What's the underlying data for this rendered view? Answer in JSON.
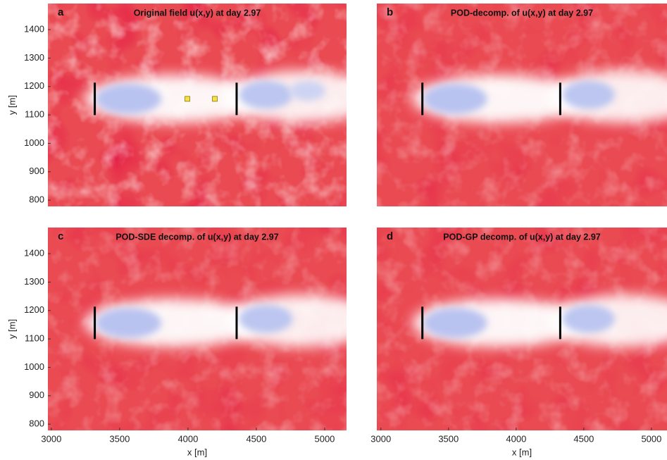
{
  "chart_data": [
    {
      "type": "heatmap",
      "panel": "a",
      "title": "Original field u(x,y) at day 2.97",
      "xlim": [
        2975,
        5160
      ],
      "ylim": [
        778,
        1492
      ],
      "yticks": [
        800,
        900,
        1000,
        1100,
        1200,
        1300,
        1400
      ],
      "ylabel": "y [m]"
    },
    {
      "type": "heatmap",
      "panel": "b",
      "title": "POD-decomp. of u(x,y) at day 2.97",
      "xlim": [
        2970,
        5115
      ],
      "ylim": [
        778,
        1492
      ]
    },
    {
      "type": "heatmap",
      "panel": "c",
      "title": "POD-SDE decomp. of u(x,y) at day 2.97",
      "xlim": [
        2975,
        5160
      ],
      "ylim": [
        778,
        1492
      ],
      "xticks": [
        3000,
        3500,
        4000,
        4500,
        5000
      ],
      "xlabel": "x [m]",
      "yticks": [
        800,
        900,
        1000,
        1100,
        1200,
        1300,
        1400
      ],
      "ylabel": "y [m]"
    },
    {
      "type": "heatmap",
      "panel": "d",
      "title": "POD-GP decomp. of u(x,y) at day 2.97",
      "xlim": [
        2970,
        5115
      ],
      "ylim": [
        778,
        1492
      ],
      "xticks": [
        3000,
        3500,
        4000,
        4500,
        5000
      ],
      "xlabel": "x [m]"
    }
  ]
}
